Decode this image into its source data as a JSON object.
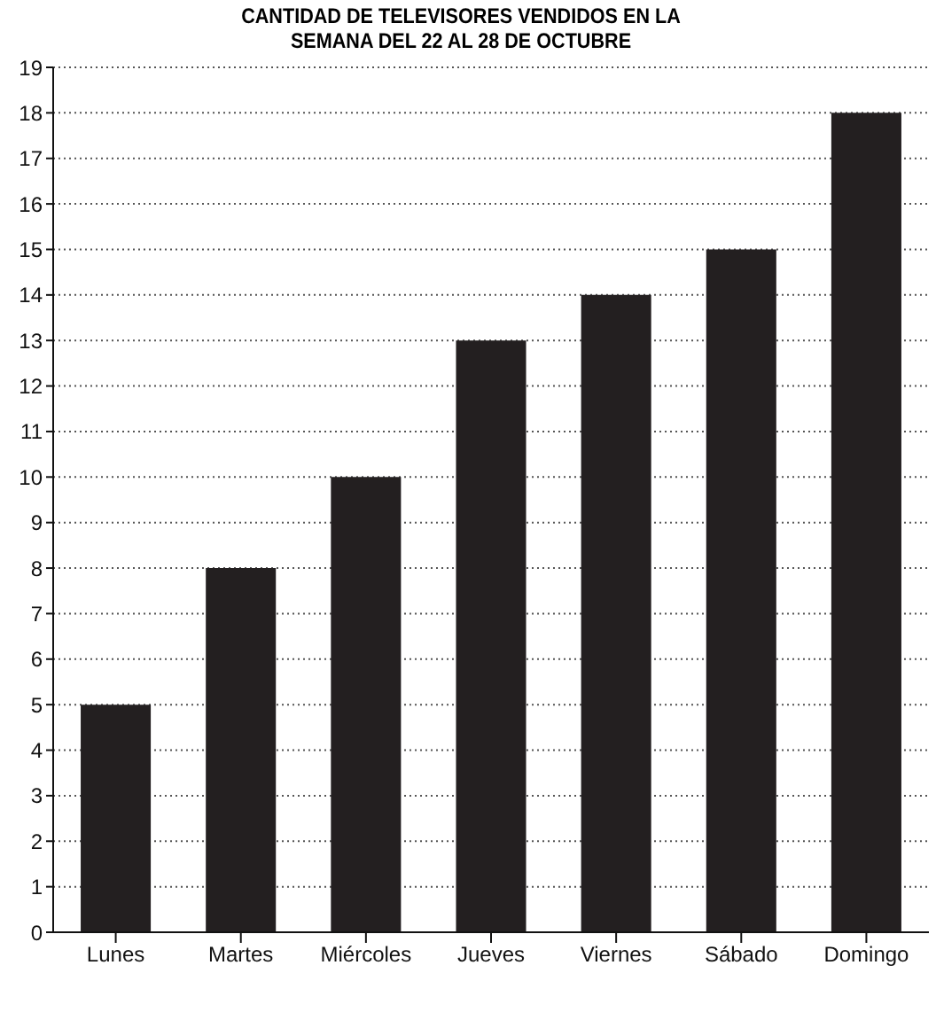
{
  "chart_data": {
    "type": "bar",
    "title": "CANTIDAD DE TELEVISORES VENDIDOS EN LA SEMANA DEL 22 AL 28 DE OCTUBRE",
    "categories": [
      "Lunes",
      "Martes",
      "Miércoles",
      "Jueves",
      "Viernes",
      "Sábado",
      "Domingo"
    ],
    "values": [
      5,
      8,
      10,
      13,
      14,
      15,
      18
    ],
    "color": "#231f20",
    "ylim": [
      0,
      19
    ],
    "yticks": [
      0,
      1,
      2,
      3,
      4,
      5,
      6,
      7,
      8,
      9,
      10,
      11,
      12,
      13,
      14,
      15,
      16,
      17,
      18,
      19
    ],
    "grid": "y"
  }
}
